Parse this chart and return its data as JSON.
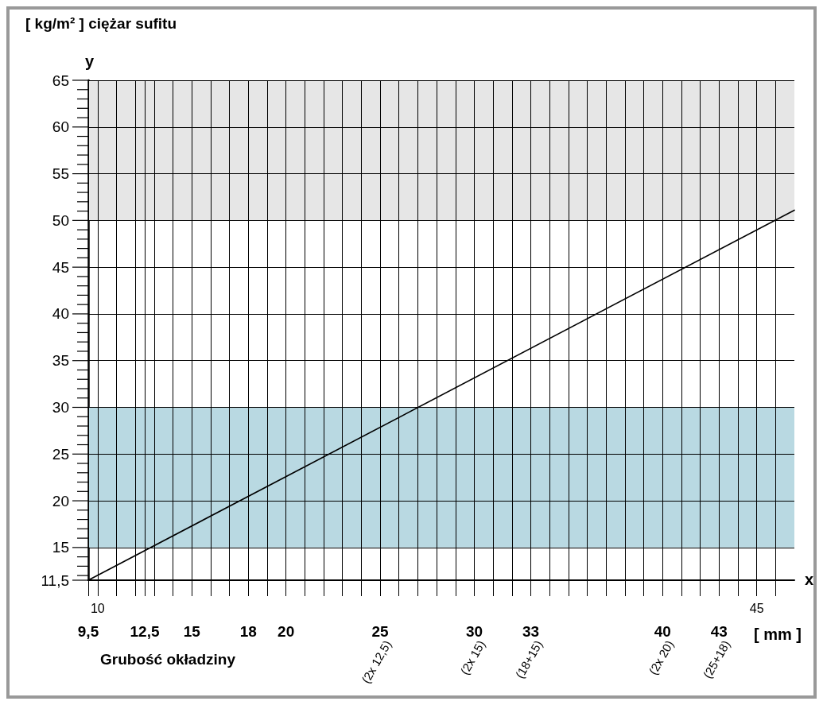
{
  "chart_data": {
    "type": "line",
    "xlabel": "Grubość okładziny",
    "ylabel": "[ kg/m² ] ciężar sufitu",
    "x": [
      9.5,
      47
    ],
    "values": [
      11.5,
      51.1
    ],
    "color": "#000000",
    "marker": "none",
    "line_style": "solid",
    "xlim": [
      9.5,
      47
    ],
    "xticks": [
      {
        "value": 9.5,
        "label": "9,5"
      },
      {
        "value": 10,
        "label": null
      },
      {
        "value": 11,
        "label": null
      },
      {
        "value": 12,
        "label": null
      },
      {
        "value": 12.5,
        "label": "12,5"
      },
      {
        "value": 13,
        "label": null
      },
      {
        "value": 14,
        "label": null
      },
      15,
      {
        "value": 16,
        "label": null
      },
      {
        "value": 17,
        "label": null
      },
      18,
      {
        "value": 19,
        "label": null
      },
      20,
      {
        "value": 21,
        "label": null
      },
      {
        "value": 22,
        "label": null
      },
      {
        "value": 23,
        "label": null
      },
      {
        "value": 24,
        "label": null
      },
      25,
      {
        "value": 26,
        "label": null
      },
      {
        "value": 27,
        "label": null
      },
      {
        "value": 28,
        "label": null
      },
      {
        "value": 29,
        "label": null
      },
      30,
      {
        "value": 31,
        "label": null
      },
      {
        "value": 32,
        "label": null
      },
      33,
      {
        "value": 34,
        "label": null
      },
      {
        "value": 35,
        "label": null
      },
      {
        "value": 36,
        "label": null
      },
      {
        "value": 37,
        "label": null
      },
      {
        "value": 38,
        "label": null
      },
      {
        "value": 39,
        "label": null
      },
      40,
      {
        "value": 41,
        "label": null
      },
      {
        "value": 42,
        "label": null
      },
      43,
      {
        "value": 44,
        "label": null
      },
      {
        "value": 45,
        "label": null
      },
      {
        "value": 46,
        "label": null
      }
    ],
    "x2lim": [
      9.5,
      47
    ],
    "x2ticks": [
      10,
      45
    ],
    "ylim": [
      11.5,
      65
    ],
    "yticks": [
      {
        "value": 11.5,
        "label": "11,5"
      },
      {
        "value": 12,
        "label": null
      },
      {
        "value": 13,
        "label": null
      },
      {
        "value": 14,
        "label": null
      },
      15,
      {
        "value": 16,
        "label": null
      },
      {
        "value": 17,
        "label": null
      },
      {
        "value": 18,
        "label": null
      },
      {
        "value": 19,
        "label": null
      },
      20,
      {
        "value": 21,
        "label": null
      },
      {
        "value": 22,
        "label": null
      },
      {
        "value": 23,
        "label": null
      },
      {
        "value": 24,
        "label": null
      },
      25,
      {
        "value": 26,
        "label": null
      },
      {
        "value": 27,
        "label": null
      },
      {
        "value": 28,
        "label": null
      },
      {
        "value": 29,
        "label": null
      },
      30,
      {
        "value": 31,
        "label": null
      },
      {
        "value": 32,
        "label": null
      },
      {
        "value": 33,
        "label": null
      },
      {
        "value": 34,
        "label": null
      },
      35,
      {
        "value": 36,
        "label": null
      },
      {
        "value": 37,
        "label": null
      },
      {
        "value": 38,
        "label": null
      },
      {
        "value": 39,
        "label": null
      },
      40,
      {
        "value": 41,
        "label": null
      },
      {
        "value": 42,
        "label": null
      },
      {
        "value": 43,
        "label": null
      },
      {
        "value": 44,
        "label": null
      },
      45,
      {
        "value": 46,
        "label": null
      },
      {
        "value": 47,
        "label": null
      },
      {
        "value": 48,
        "label": null
      },
      {
        "value": 49,
        "label": null
      },
      50,
      {
        "value": 51,
        "label": null
      },
      {
        "value": 52,
        "label": null
      },
      {
        "value": 53,
        "label": null
      },
      {
        "value": 54,
        "label": null
      },
      55,
      {
        "value": 56,
        "label": null
      },
      {
        "value": 57,
        "label": null
      },
      {
        "value": 58,
        "label": null
      },
      {
        "value": 59,
        "label": null
      },
      60,
      {
        "value": 61,
        "label": null
      },
      {
        "value": 62,
        "label": null
      },
      {
        "value": 63,
        "label": null
      },
      {
        "value": 64,
        "label": null
      },
      65
    ],
    "grid": true,
    "bands": [
      {
        "axis": "y",
        "from": 15,
        "to": 30,
        "color": "#b9d9e2"
      },
      {
        "axis": "y",
        "from": 50,
        "to": 65,
        "color": "#e6e6e6"
      }
    ],
    "annotations": [
      "(2x 12,5)",
      "(2x 15)",
      "(18+15)",
      "(2x 20)",
      "(25+18)",
      "[ mm ]",
      "x",
      "y"
    ]
  }
}
